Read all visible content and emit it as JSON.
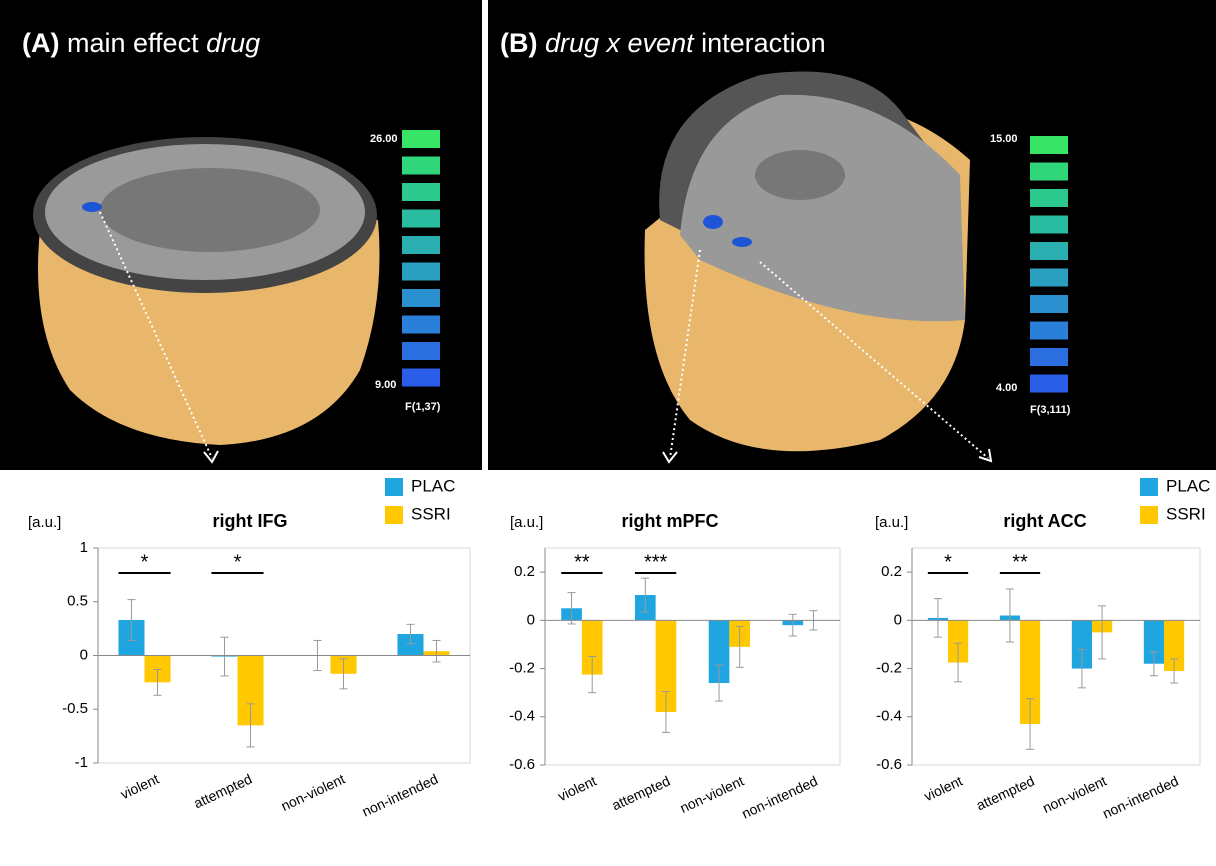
{
  "panels": [
    {
      "label": "(A)",
      "title_plain": "main effect",
      "title_italic": "drug",
      "colorbar": {
        "max": "26.00",
        "min": "9.00",
        "stat": "F(1,37)"
      }
    },
    {
      "label": "(B)",
      "title_italic": "drug x event",
      "title_plain": "interaction",
      "colorbar": {
        "max": "15.00",
        "min": "4.00",
        "stat": "F(3,111)"
      }
    }
  ],
  "chart_data": [
    {
      "type": "bar",
      "title": "right IFG",
      "ylabel": "[a.u.]",
      "categories": [
        "violent",
        "attempted",
        "non-violent",
        "non-intended"
      ],
      "series": [
        {
          "name": "PLAC",
          "color": "#1fa6e0",
          "values": [
            0.33,
            -0.01,
            0.0,
            0.2
          ],
          "errors": [
            0.19,
            0.18,
            0.14,
            0.09
          ]
        },
        {
          "name": "SSRI",
          "color": "#ffc800",
          "values": [
            -0.25,
            -0.65,
            -0.17,
            0.04
          ],
          "errors": [
            0.12,
            0.2,
            0.14,
            0.1
          ]
        }
      ],
      "significance": [
        "*",
        "*",
        null,
        null
      ],
      "ylim": [
        -1,
        1
      ],
      "yticks": [
        1,
        0.5,
        0,
        -0.5,
        -1
      ],
      "legend": "top-right"
    },
    {
      "type": "bar",
      "title": "right mPFC",
      "ylabel": "[a.u.]",
      "categories": [
        "violent",
        "attempted",
        "non-violent",
        "non-intended"
      ],
      "series": [
        {
          "name": "PLAC",
          "color": "#1fa6e0",
          "values": [
            0.05,
            0.105,
            -0.26,
            -0.02
          ],
          "errors": [
            0.065,
            0.07,
            0.075,
            0.045
          ]
        },
        {
          "name": "SSRI",
          "color": "#ffc800",
          "values": [
            -0.225,
            -0.38,
            -0.11,
            0.0
          ],
          "errors": [
            0.075,
            0.085,
            0.085,
            0.04
          ]
        }
      ],
      "significance": [
        "**",
        "***",
        null,
        null
      ],
      "ylim": [
        -0.6,
        0.3
      ],
      "yticks": [
        0.2,
        0,
        -0.2,
        -0.4,
        -0.6
      ]
    },
    {
      "type": "bar",
      "title": "right ACC",
      "ylabel": "[a.u.]",
      "categories": [
        "violent",
        "attempted",
        "non-violent",
        "non-intended"
      ],
      "series": [
        {
          "name": "PLAC",
          "color": "#1fa6e0",
          "values": [
            0.01,
            0.02,
            -0.2,
            -0.18
          ],
          "errors": [
            0.08,
            0.11,
            0.08,
            0.05
          ]
        },
        {
          "name": "SSRI",
          "color": "#ffc800",
          "values": [
            -0.175,
            -0.43,
            -0.05,
            -0.21
          ],
          "errors": [
            0.08,
            0.105,
            0.11,
            0.05
          ]
        }
      ],
      "significance": [
        "*",
        "**",
        null,
        null
      ],
      "ylim": [
        -0.6,
        0.3
      ],
      "yticks": [
        0.2,
        0,
        -0.2,
        -0.4,
        -0.6
      ],
      "legend": "top-right"
    }
  ]
}
